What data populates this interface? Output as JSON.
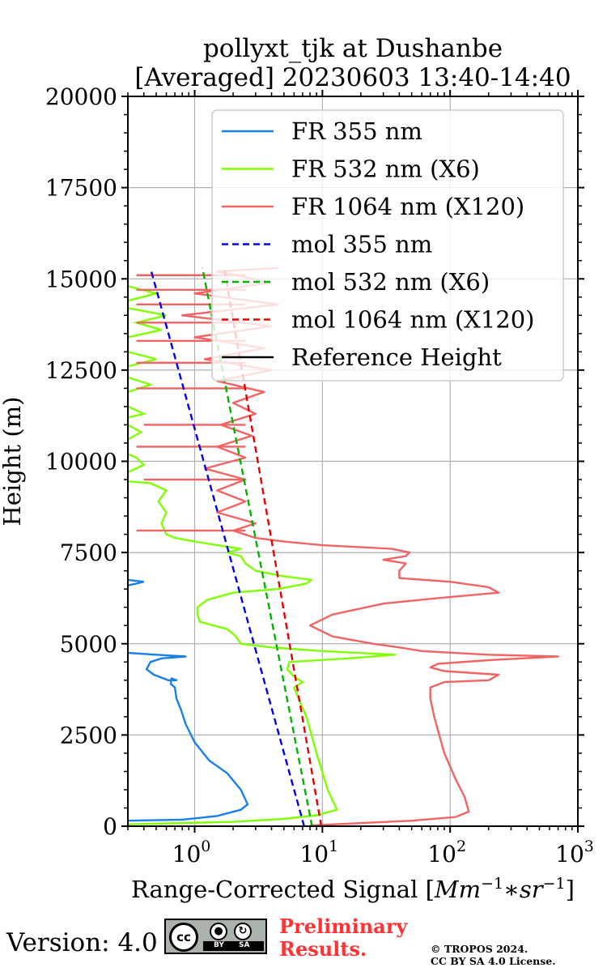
{
  "header": {
    "title_line1": "pollyxt_tjk at Dushanbe",
    "title_line2": "[Averaged] 20230603 13:40-14:40"
  },
  "footer": {
    "version": "Version: 4.0",
    "license_badge": "CC BY SA",
    "license_badge_by": "BY",
    "license_badge_sa": "SA",
    "license_badge_cc": "cc",
    "preliminary_line1": "Preliminary",
    "preliminary_line2": "Results.",
    "copyright_line1": "© TROPOS 2024.",
    "copyright_line2": "CC BY SA 4.0 License."
  },
  "colors": {
    "fr355": "#1a7fe6",
    "fr532": "#80ff00",
    "fr1064": "#f06464",
    "mol355": "#0000e6",
    "mol532": "#00b300",
    "mol1064": "#e60000",
    "reference": "#000000",
    "prelim": "#ff3333"
  },
  "chart_data": {
    "type": "line",
    "xscale": "log",
    "xlim": [
      0.3,
      1000
    ],
    "ylim": [
      0,
      20000
    ],
    "xlabel": "Range-Corrected Signal [Mm^{-1}*sr^{-1}]",
    "xlabel_text": "Range-Corrected Signal [",
    "xlabel_math": "Mm",
    "xlabel_sup1": "−1",
    "xlabel_mid": "∗sr",
    "xlabel_sup2": "−1",
    "xlabel_end": "]",
    "ylabel": "Height (m)",
    "yticks": [
      0,
      2500,
      5000,
      7500,
      10000,
      12500,
      15000,
      17500,
      20000
    ],
    "ytick_labels": [
      "0",
      "2500",
      "5000",
      "7500",
      "10000",
      "12500",
      "15000",
      "17500",
      "20000"
    ],
    "xticks": [
      1,
      10,
      100,
      1000
    ],
    "xtick_labels": [
      {
        "base": "10",
        "exp": "0"
      },
      {
        "base": "10",
        "exp": "1"
      },
      {
        "base": "10",
        "exp": "2"
      },
      {
        "base": "10",
        "exp": "3"
      }
    ],
    "grid": true,
    "legend_position": "top-right",
    "legend": [
      {
        "label": "FR 355 nm",
        "series": "fr355",
        "style": "solid"
      },
      {
        "label": "FR 532 nm (X6)",
        "series": "fr532",
        "style": "solid"
      },
      {
        "label": "FR 1064 nm (X120)",
        "series": "fr1064",
        "style": "solid"
      },
      {
        "label": "mol 355 nm",
        "series": "mol355",
        "style": "dashed"
      },
      {
        "label": "mol 532 nm (X6)",
        "series": "mol532",
        "style": "dashed"
      },
      {
        "label": "mol 1064 nm (X120)",
        "series": "mol1064",
        "style": "dashed"
      },
      {
        "label": "Reference Height",
        "series": "reference",
        "style": "solid"
      }
    ],
    "series": [
      {
        "name": "FR 355 nm",
        "key": "fr355",
        "style": "solid",
        "points": [
          [
            0.3,
            150
          ],
          [
            0.8,
            180
          ],
          [
            1.5,
            280
          ],
          [
            2.3,
            450
          ],
          [
            2.6,
            600
          ],
          [
            2.3,
            1000
          ],
          [
            1.8,
            1450
          ],
          [
            1.3,
            1800
          ],
          [
            1.0,
            2300
          ],
          [
            0.85,
            2800
          ],
          [
            0.78,
            3200
          ],
          [
            0.72,
            3500
          ],
          [
            0.7,
            3800
          ],
          [
            0.65,
            3900
          ],
          [
            0.66,
            4050
          ],
          [
            0.72,
            4000
          ],
          [
            0.62,
            4000
          ],
          [
            0.48,
            4150
          ],
          [
            0.42,
            4300
          ],
          [
            0.45,
            4500
          ],
          [
            0.55,
            4600
          ],
          [
            0.85,
            4650
          ],
          [
            0.5,
            4700
          ],
          [
            0.3,
            4750
          ]
        ],
        "extra_segments": [
          [
            [
              0.3,
              6600
            ],
            [
              0.35,
              6650
            ],
            [
              0.4,
              6700
            ],
            [
              0.3,
              6750
            ]
          ]
        ]
      },
      {
        "name": "FR 532 nm (X6)",
        "key": "fr532",
        "style": "solid",
        "points": [
          [
            0.3,
            50
          ],
          [
            2.0,
            120
          ],
          [
            5.0,
            200
          ],
          [
            9.0,
            300
          ],
          [
            13.0,
            450
          ],
          [
            11.0,
            1000
          ],
          [
            9.0,
            2000
          ],
          [
            7.5,
            3000
          ],
          [
            6.5,
            3500
          ],
          [
            6.0,
            3800
          ],
          [
            7.0,
            3950
          ],
          [
            6.0,
            4100
          ],
          [
            5.3,
            4300
          ],
          [
            5.5,
            4500
          ],
          [
            16.0,
            4600
          ],
          [
            37.0,
            4700
          ],
          [
            10.0,
            4800
          ],
          [
            4.0,
            4900
          ],
          [
            2.3,
            5000
          ],
          [
            2.1,
            5200
          ],
          [
            1.8,
            5400
          ],
          [
            1.4,
            5500
          ],
          [
            1.1,
            5600
          ],
          [
            1.05,
            5800
          ],
          [
            1.05,
            6000
          ],
          [
            1.25,
            6200
          ],
          [
            2.0,
            6400
          ],
          [
            4.5,
            6500
          ],
          [
            7.5,
            6650
          ],
          [
            8.2,
            6750
          ],
          [
            5.0,
            6850
          ],
          [
            3.0,
            7000
          ],
          [
            2.5,
            7200
          ],
          [
            2.3,
            7400
          ],
          [
            1.8,
            7500
          ],
          [
            2.3,
            7600
          ],
          [
            1.5,
            7700
          ],
          [
            1.0,
            7800
          ],
          [
            0.7,
            7900
          ],
          [
            0.6,
            8000
          ],
          [
            0.55,
            8300
          ],
          [
            0.6,
            8600
          ],
          [
            0.52,
            8900
          ],
          [
            0.6,
            9200
          ],
          [
            0.45,
            9400
          ],
          [
            0.3,
            9450
          ]
        ],
        "extra_segments": [
          [
            [
              0.3,
              9700
            ],
            [
              0.4,
              9900
            ],
            [
              0.35,
              10100
            ],
            [
              0.3,
              10200
            ]
          ],
          [
            [
              0.3,
              10600
            ],
            [
              0.38,
              10800
            ],
            [
              0.3,
              11000
            ]
          ],
          [
            [
              0.3,
              11200
            ],
            [
              0.4,
              11300
            ],
            [
              0.3,
              11500
            ]
          ],
          [
            [
              0.3,
              11900
            ],
            [
              0.45,
              12100
            ],
            [
              0.3,
              12300
            ]
          ],
          [
            [
              0.3,
              12600
            ],
            [
              0.5,
              12800
            ],
            [
              0.3,
              13000
            ]
          ],
          [
            [
              0.3,
              13400
            ],
            [
              0.55,
              13600
            ],
            [
              0.35,
              13800
            ],
            [
              0.6,
              14000
            ],
            [
              0.3,
              14200
            ]
          ],
          [
            [
              0.3,
              14400
            ],
            [
              0.5,
              14600
            ],
            [
              0.3,
              14800
            ]
          ]
        ]
      },
      {
        "name": "FR 1064 nm (X120)",
        "key": "fr1064",
        "style": "solid",
        "points": [
          [
            8.0,
            20
          ],
          [
            50.0,
            150
          ],
          [
            110.0,
            250
          ],
          [
            140.0,
            400
          ],
          [
            130.0,
            800
          ],
          [
            110.0,
            1300
          ],
          [
            90.0,
            2000
          ],
          [
            75.0,
            3000
          ],
          [
            70.0,
            3500
          ],
          [
            70.0,
            3800
          ],
          [
            90.0,
            3950
          ],
          [
            200.0,
            4000
          ],
          [
            240.0,
            4150
          ],
          [
            90.0,
            4250
          ],
          [
            70.0,
            4350
          ],
          [
            80.0,
            4450
          ],
          [
            200.0,
            4550
          ],
          [
            700.0,
            4650
          ],
          [
            200.0,
            4700
          ],
          [
            60.0,
            4800
          ],
          [
            40.0,
            4900
          ],
          [
            25.0,
            5000
          ],
          [
            12.0,
            5200
          ],
          [
            8.0,
            5500
          ],
          [
            12.0,
            5800
          ],
          [
            30.0,
            6100
          ],
          [
            80.0,
            6250
          ],
          [
            240.0,
            6400
          ],
          [
            200.0,
            6550
          ],
          [
            100.0,
            6700
          ],
          [
            40.0,
            6800
          ],
          [
            40.0,
            7000
          ],
          [
            45.0,
            7200
          ],
          [
            30.0,
            7300
          ],
          [
            45.0,
            7400
          ],
          [
            48.0,
            7500
          ],
          [
            35.0,
            7600
          ],
          [
            10.0,
            7700
          ],
          [
            5.0,
            7800
          ],
          [
            3.0,
            7900
          ],
          [
            2.0,
            8100
          ],
          [
            3.0,
            8300
          ],
          [
            1.5,
            8600
          ],
          [
            2.5,
            8900
          ],
          [
            1.5,
            9200
          ],
          [
            2.5,
            9500
          ],
          [
            1.2,
            9800
          ],
          [
            2.5,
            10100
          ],
          [
            1.5,
            10400
          ],
          [
            2.8,
            10700
          ],
          [
            1.6,
            11000
          ],
          [
            3.0,
            11300
          ],
          [
            2.0,
            11600
          ],
          [
            3.5,
            11900
          ],
          [
            1.5,
            12200
          ],
          [
            4.0,
            12500
          ],
          [
            1.2,
            12800
          ],
          [
            3.5,
            13100
          ],
          [
            1.0,
            13400
          ],
          [
            4.0,
            13700
          ],
          [
            0.8,
            14000
          ],
          [
            4.5,
            14300
          ],
          [
            1.0,
            14600
          ],
          [
            4.0,
            14900
          ],
          [
            1.5,
            15200
          ],
          [
            4.5,
            15300
          ]
        ],
        "spikes": [
          [
            0.35,
            8100
          ],
          [
            0.4,
            9500
          ],
          [
            0.35,
            10400
          ],
          [
            0.4,
            11000
          ],
          [
            0.35,
            12000
          ],
          [
            0.35,
            12700
          ],
          [
            0.35,
            13300
          ],
          [
            0.35,
            13800
          ],
          [
            0.35,
            14300
          ],
          [
            0.35,
            14700
          ],
          [
            0.35,
            15100
          ]
        ]
      },
      {
        "name": "mol 355 nm",
        "key": "mol355",
        "style": "dashed",
        "points": [
          [
            7.2,
            0
          ],
          [
            0.45,
            15300
          ]
        ]
      },
      {
        "name": "mol 532 nm (X6)",
        "key": "mol532",
        "style": "dashed",
        "points": [
          [
            8.3,
            0
          ],
          [
            1.15,
            15300
          ]
        ]
      },
      {
        "name": "mol 1064 nm (X120)",
        "key": "mol1064",
        "style": "dashed",
        "points": [
          [
            9.8,
            0
          ],
          [
            1.7,
            15300
          ]
        ]
      }
    ]
  }
}
